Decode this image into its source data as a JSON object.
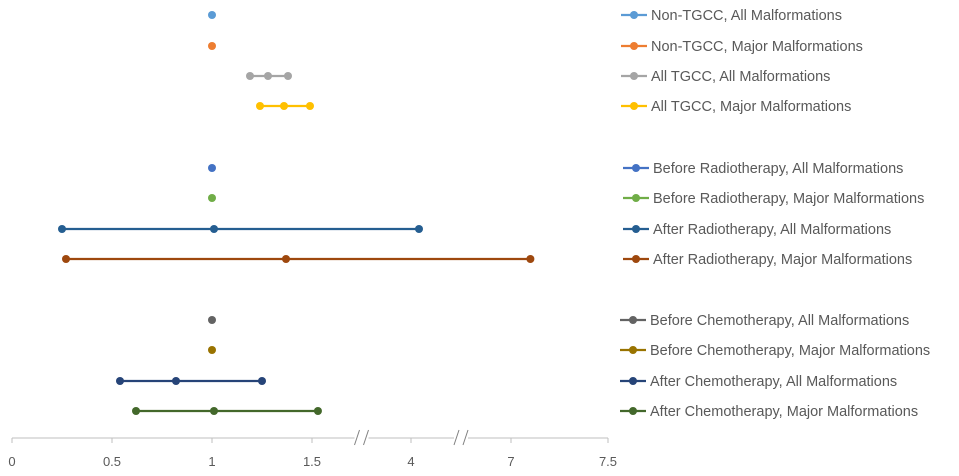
{
  "chart_data": {
    "type": "scatter",
    "subtype": "forest-plot",
    "title": "",
    "xlabel": "",
    "ylabel": "",
    "x_axis": {
      "tick_labels": [
        "0",
        "0.5",
        "1",
        "1.5",
        "4",
        "7",
        "7.5"
      ],
      "tick_values": [
        0,
        0.5,
        1,
        1.5,
        4,
        7,
        7.5
      ],
      "axis_breaks": [
        [
          1.5,
          4
        ],
        [
          4,
          7
        ]
      ],
      "grid": false
    },
    "legend": {
      "position": "right"
    },
    "series": [
      {
        "name": "Non-TGCC, All Malformations",
        "color": "#5B9BD5",
        "lower": null,
        "estimate": 1.0,
        "upper": null
      },
      {
        "name": "Non-TGCC, Major Malformations",
        "color": "#ED7D31",
        "lower": null,
        "estimate": 1.0,
        "upper": null
      },
      {
        "name": "All TGCC, All Malformations",
        "color": "#A5A5A5",
        "lower": 1.19,
        "estimate": 1.28,
        "upper": 1.38
      },
      {
        "name": "All TGCC, Major Malformations",
        "color": "#FFC000",
        "lower": 1.24,
        "estimate": 1.36,
        "upper": 1.49
      },
      {
        "name": "Before Radiotherapy, All Malformations",
        "color": "#4472C4",
        "lower": null,
        "estimate": 1.0,
        "upper": null
      },
      {
        "name": "Before Radiotherapy, Major Malformations",
        "color": "#70AD47",
        "lower": null,
        "estimate": 1.0,
        "upper": null
      },
      {
        "name": "After Radiotherapy, All Malformations",
        "color": "#255E91",
        "lower": 0.25,
        "estimate": 1.01,
        "upper": 4.24
      },
      {
        "name": "After Radiotherapy, Major Malformations",
        "color": "#9E480E",
        "lower": 0.27,
        "estimate": 1.37,
        "upper": 7.1
      },
      {
        "name": "Before Chemotherapy, All Malformations",
        "color": "#636363",
        "lower": null,
        "estimate": 1.0,
        "upper": null
      },
      {
        "name": "Before Chemotherapy, Major Malformations",
        "color": "#997300",
        "lower": null,
        "estimate": 1.0,
        "upper": null
      },
      {
        "name": "After Chemotherapy, All Malformations",
        "color": "#264478",
        "lower": 0.54,
        "estimate": 0.82,
        "upper": 1.25
      },
      {
        "name": "After Chemotherapy, Major Malformations",
        "color": "#43682B",
        "lower": 0.62,
        "estimate": 1.01,
        "upper": 1.65
      }
    ]
  }
}
